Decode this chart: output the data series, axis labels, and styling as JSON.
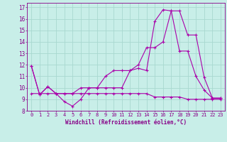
{
  "title": "",
  "xlabel": "Windchill (Refroidissement éolien,°C)",
  "ylabel": "",
  "bg_color": "#c8eee8",
  "grid_color": "#a8d8d0",
  "line_color": "#aa00aa",
  "xlim": [
    -0.5,
    23.5
  ],
  "ylim": [
    8,
    17.4
  ],
  "xticks": [
    0,
    1,
    2,
    3,
    4,
    5,
    6,
    7,
    8,
    9,
    10,
    11,
    12,
    13,
    14,
    15,
    16,
    17,
    18,
    19,
    20,
    21,
    22,
    23
  ],
  "yticks": [
    8,
    9,
    10,
    11,
    12,
    13,
    14,
    15,
    16,
    17
  ],
  "line1_x": [
    0,
    1,
    2,
    3,
    4,
    5,
    6,
    7,
    8,
    9,
    10,
    11,
    12,
    13,
    14,
    15,
    16,
    17,
    18,
    19,
    20,
    21,
    22,
    23
  ],
  "line1_y": [
    11.9,
    9.4,
    10.1,
    9.5,
    8.8,
    8.4,
    9.0,
    10.0,
    10.0,
    10.0,
    10.0,
    10.0,
    11.5,
    11.7,
    11.5,
    15.8,
    16.8,
    16.7,
    13.2,
    13.2,
    11.0,
    9.8,
    9.1,
    9.1
  ],
  "line2_x": [
    0,
    1,
    2,
    3,
    4,
    5,
    6,
    7,
    8,
    9,
    10,
    11,
    12,
    13,
    14,
    15,
    16,
    17,
    18,
    19,
    20,
    21,
    22,
    23
  ],
  "line2_y": [
    11.9,
    9.4,
    10.1,
    9.5,
    9.5,
    9.5,
    10.0,
    10.0,
    10.0,
    11.0,
    11.5,
    11.5,
    11.5,
    12.0,
    13.5,
    13.5,
    14.0,
    16.7,
    16.7,
    14.6,
    14.6,
    10.9,
    9.1,
    9.1
  ],
  "line3_x": [
    0,
    1,
    2,
    3,
    4,
    5,
    6,
    7,
    8,
    9,
    10,
    11,
    12,
    13,
    14,
    15,
    16,
    17,
    18,
    19,
    20,
    21,
    22,
    23
  ],
  "line3_y": [
    9.5,
    9.5,
    9.5,
    9.5,
    9.5,
    9.5,
    9.5,
    9.5,
    9.5,
    9.5,
    9.5,
    9.5,
    9.5,
    9.5,
    9.5,
    9.2,
    9.2,
    9.2,
    9.2,
    9.0,
    9.0,
    9.0,
    9.0,
    9.0
  ],
  "tick_color": "#880088",
  "tick_fontsize": 5.0,
  "xlabel_fontsize": 5.5,
  "lw": 0.8,
  "ms": 2.5
}
